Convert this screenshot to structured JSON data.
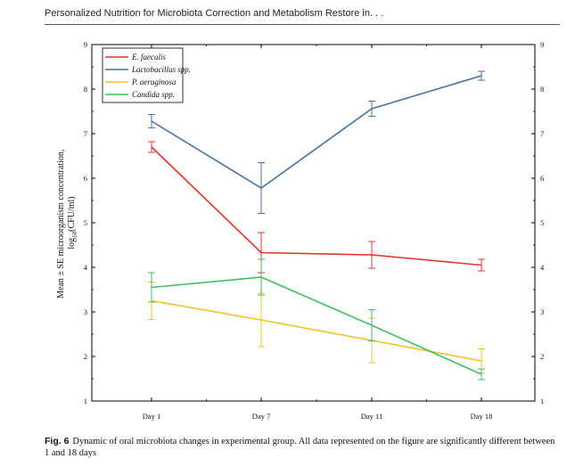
{
  "header": {
    "running_title": "Personalized Nutrition for Microbiota Correction and Metabolism Restore in. . ."
  },
  "caption": {
    "figure_label": "Fig. 6",
    "text": "Dynamic of oral microbiota changes in experimental group. All data represented on the figure are significantly different between 1 and 18 days"
  },
  "chart_data": {
    "type": "line",
    "title": "",
    "xlabel": "",
    "ylabel_line1": "Mean ± SE microorganism concentration,",
    "ylabel_line2_prefix": "log",
    "ylabel_line2_sub": "10",
    "ylabel_line2_suffix": "(CFU/ml)",
    "categories": [
      "Day 1",
      "Day 7",
      "Day 11",
      "Day 18"
    ],
    "ylim": [
      1,
      9
    ],
    "yticks": [
      1,
      2,
      3,
      4,
      5,
      6,
      7,
      8,
      9
    ],
    "legend_position": "top-left",
    "series": [
      {
        "name": "E. faecalis",
        "color": "#e8332b",
        "values": [
          6.7,
          4.33,
          4.28,
          4.05
        ],
        "errors": [
          0.12,
          0.45,
          0.3,
          0.13
        ]
      },
      {
        "name": "Lactobacillus spp.",
        "color": "#4472a6",
        "values": [
          7.28,
          5.78,
          7.56,
          8.3
        ],
        "errors": [
          0.15,
          0.57,
          0.17,
          0.1
        ]
      },
      {
        "name": "P. aeruginosa",
        "color": "#f6c124",
        "values": [
          3.25,
          2.82,
          2.36,
          1.9
        ],
        "errors": [
          0.42,
          0.6,
          0.5,
          0.27
        ]
      },
      {
        "name": "Candida spp.",
        "color": "#3fbf5f",
        "values": [
          3.55,
          3.78,
          2.7,
          1.6
        ],
        "errors": [
          0.33,
          0.4,
          0.35,
          0.12
        ]
      }
    ]
  }
}
